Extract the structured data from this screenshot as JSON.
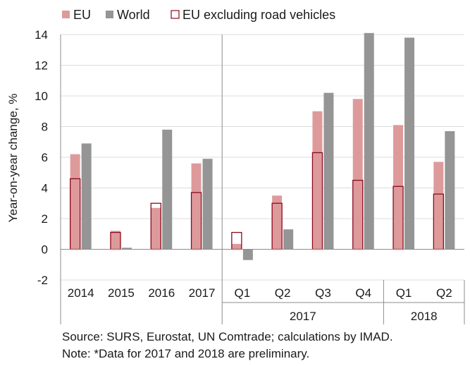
{
  "chart_data": {
    "type": "bar",
    "ylabel": "Year-on-year change, %",
    "ylim": [
      -2,
      14
    ],
    "yticks": [
      -2,
      0,
      2,
      4,
      6,
      8,
      10,
      12,
      14
    ],
    "categories": [
      "2014",
      "2015",
      "2016",
      "2017",
      "Q1",
      "Q2",
      "Q3",
      "Q4",
      "Q1",
      "Q2"
    ],
    "groups": [
      {
        "label": "",
        "span": [
          0,
          3
        ]
      },
      {
        "label": "2017",
        "span": [
          4,
          7
        ]
      },
      {
        "label": "2018",
        "span": [
          8,
          9
        ]
      }
    ],
    "legend_position": "top-left",
    "series": [
      {
        "name": "EU",
        "color": "#de9a9a",
        "values": [
          6.2,
          1.2,
          2.7,
          5.6,
          0.35,
          3.5,
          9.0,
          9.8,
          8.1,
          5.7
        ]
      },
      {
        "name": "World",
        "color": "#959595",
        "values": [
          6.9,
          0.1,
          7.8,
          5.9,
          -0.7,
          1.3,
          10.2,
          14.1,
          13.8,
          7.7
        ]
      },
      {
        "name": "EU excluding road vehicles",
        "color": "#8b0a1e",
        "style": "outline",
        "values": [
          4.6,
          1.1,
          3.0,
          3.7,
          1.1,
          3.0,
          6.3,
          4.5,
          4.1,
          3.6
        ]
      }
    ]
  },
  "notes": {
    "source": "Source: SURS, Eurostat, UN Comtrade; calculations by IMAD.",
    "note": "Note: *Data for 2017 and 2018 are preliminary."
  }
}
